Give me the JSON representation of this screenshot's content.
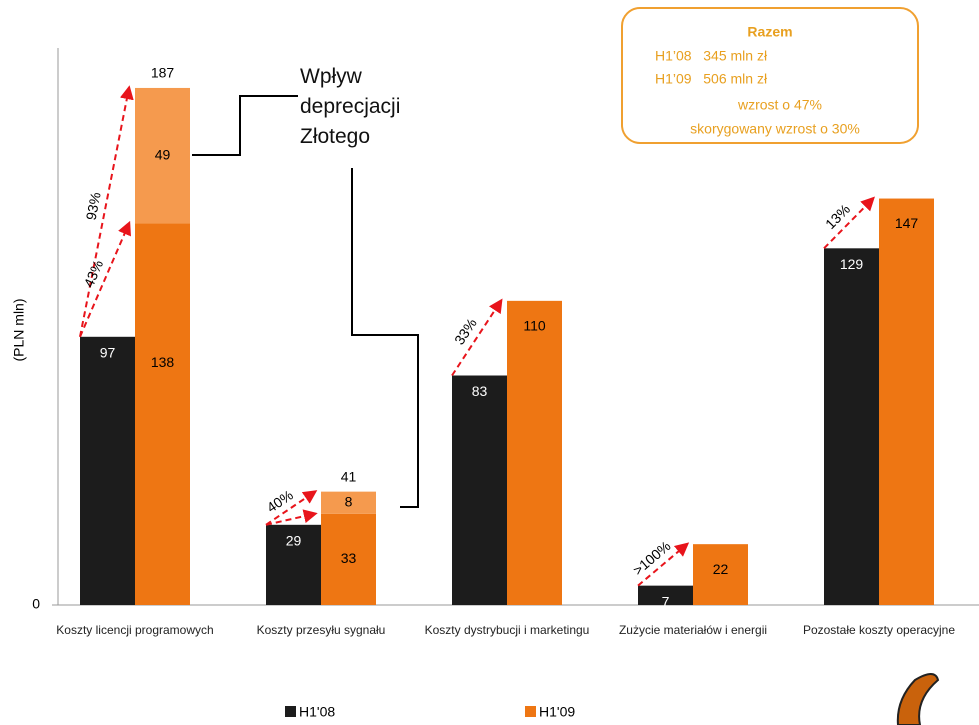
{
  "chart_data": {
    "type": "bar",
    "y_label": "(PLN mln)",
    "categories": [
      "Koszty licencji programowych",
      "Koszty przesyłu sygnału",
      "Koszty dystrybucji i marketingu",
      "Zużycie materiałów i energii",
      "Pozostałe koszty operacyjne"
    ],
    "series": [
      {
        "name": "H1'08",
        "color": "#1c1c1c",
        "values": [
          97,
          29,
          83,
          7,
          129
        ]
      },
      {
        "name": "H1'09",
        "color": "#ee7613",
        "values": [
          138,
          33,
          110,
          22,
          147
        ]
      }
    ],
    "depreciation": {
      "label": "Wpływ deprecjacji Złotego",
      "color": "#f59a4e",
      "values": [
        49,
        8,
        null,
        null,
        null
      ]
    },
    "totals": [
      187,
      41,
      null,
      null,
      null
    ],
    "growth_labels": [
      [
        "93%",
        "43%"
      ],
      [
        "40%"
      ],
      [
        "33%"
      ],
      [
        ">100%"
      ],
      [
        "13%"
      ]
    ],
    "ylim": [
      0,
      200
    ],
    "yticks": [
      0
    ],
    "summary": {
      "title": "Razem",
      "lines": [
        "H1’08   345 mln zł",
        "H1’09   506 mln zł",
        "wzrost o 47%",
        "skorygowany wzrost o 30%"
      ]
    }
  }
}
